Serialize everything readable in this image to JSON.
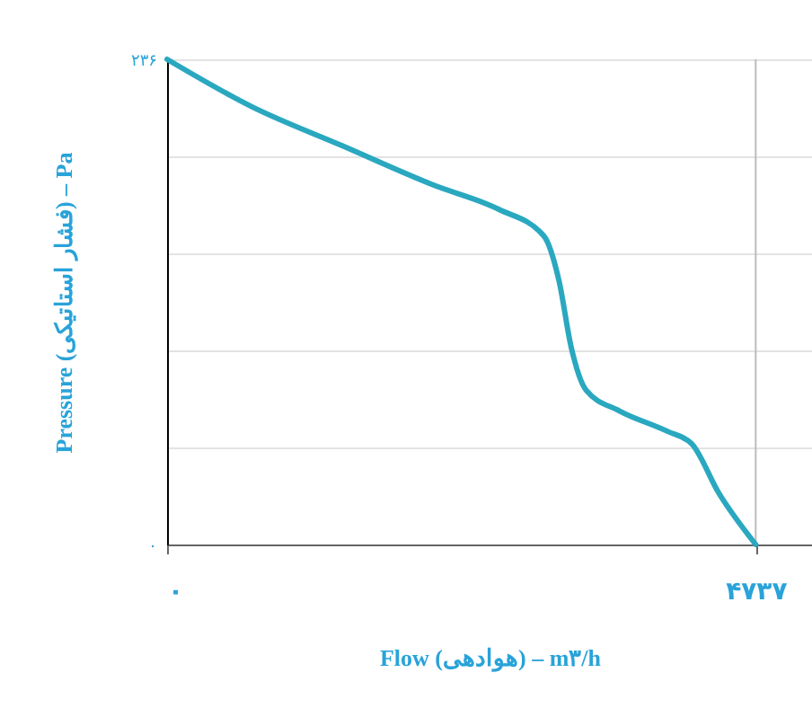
{
  "chart_data": {
    "type": "line",
    "xlabel": "Flow (هوادهی) – m۳/h",
    "ylabel": "Pressure (فشار استاتیکی) – Pa",
    "x": [
      0,
      680,
      1407,
      2136,
      2670,
      3033,
      3155,
      3252,
      3373,
      3640,
      4028,
      4222,
      4440,
      4737
    ],
    "series": [
      {
        "color": "#2aa8c0",
        "values": [
          236,
          213,
          194,
          175,
          163,
          150,
          128,
          96,
          75,
          65,
          55,
          49,
          25,
          0
        ]
      }
    ],
    "xlim": [
      0,
      5190
    ],
    "ylim": [
      0,
      236
    ],
    "xticks": [
      {
        "value": 0,
        "label": "۰"
      },
      {
        "value": 4737,
        "label": "۴۷۳۷"
      }
    ],
    "yticks": [
      {
        "value": 0,
        "label": "۰"
      },
      {
        "value": 47.2,
        "label": null
      },
      {
        "value": 94.4,
        "label": null
      },
      {
        "value": 141.6,
        "label": null
      },
      {
        "value": 188.8,
        "label": null
      },
      {
        "value": 236,
        "label": "۲۳۶"
      }
    ],
    "ref_lines": [
      {
        "axis": "x",
        "value": 4737,
        "color": "#bbbbbb"
      }
    ],
    "grid": "y"
  }
}
